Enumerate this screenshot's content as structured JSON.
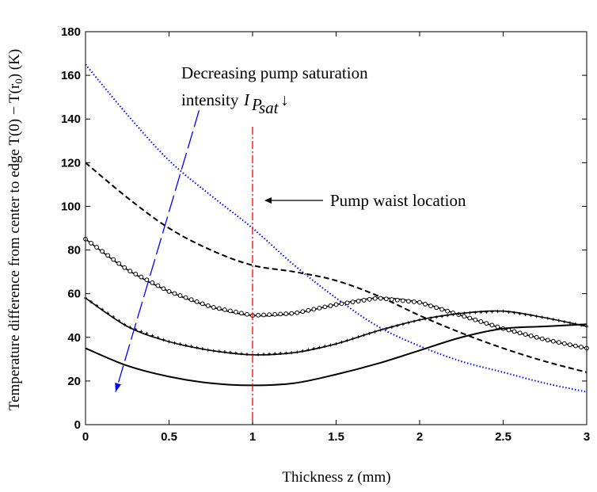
{
  "chart_data": {
    "type": "line",
    "title": "",
    "xlabel": "Thickness z (mm)",
    "ylabel": "Temperature difference from center to edge T(0) − T(r",
    "ylabel_sub": "0",
    "ylabel_tail": ") (K)",
    "xlim": [
      0,
      3
    ],
    "ylim": [
      0,
      180
    ],
    "xticks": [
      0,
      0.5,
      1,
      1.5,
      2,
      2.5,
      3
    ],
    "xtick_labels": [
      "0",
      "0.5",
      "1",
      "1.5",
      "2",
      "2.5",
      "3"
    ],
    "yticks": [
      0,
      20,
      40,
      60,
      80,
      100,
      120,
      140,
      160,
      180
    ],
    "ytick_labels": [
      "0",
      "20",
      "40",
      "60",
      "80",
      "100",
      "120",
      "140",
      "160",
      "180"
    ],
    "grid": false,
    "x": [
      0,
      0.25,
      0.5,
      0.75,
      1.0,
      1.25,
      1.5,
      1.75,
      2.0,
      2.25,
      2.5,
      2.75,
      3.0
    ],
    "series": [
      {
        "style": "dotted-blue",
        "color": "#0000ff",
        "values": [
          165,
          142,
          121,
          105,
          90,
          73,
          58,
          45,
          36,
          29,
          24,
          19,
          15
        ]
      },
      {
        "style": "dashed-black",
        "color": "#000000",
        "values": [
          120,
          104,
          90,
          80,
          73,
          70,
          66,
          59,
          50,
          42,
          35,
          29,
          24
        ]
      },
      {
        "style": "solid-circle-markers",
        "color": "#000000",
        "values": [
          85,
          71,
          61,
          54,
          50,
          51,
          55,
          58,
          56,
          50,
          44,
          39,
          35
        ]
      },
      {
        "style": "solid-star-markers",
        "color": "#000000",
        "values": [
          58,
          45,
          38,
          34,
          32,
          33,
          37,
          43,
          48,
          51,
          52,
          49,
          45
        ]
      },
      {
        "style": "solid-black",
        "color": "#000000",
        "values": [
          35,
          27,
          22,
          19,
          18,
          19,
          23,
          28,
          34,
          40,
          44,
          45,
          46
        ]
      }
    ],
    "annotations": {
      "saturation_line1": "Decreasing pump saturation",
      "saturation_line2": "intensity",
      "saturation_symbol": "I",
      "saturation_sub1": "P",
      "saturation_sub2": "sat",
      "down_arrow": "↓",
      "waist_label": "Pump waist location",
      "waist_x": 1.0
    },
    "arrow": {
      "from": [
        0.68,
        144
      ],
      "to": [
        0.18,
        15
      ],
      "color": "#0000ff"
    },
    "vline_color": "#ff0000"
  }
}
